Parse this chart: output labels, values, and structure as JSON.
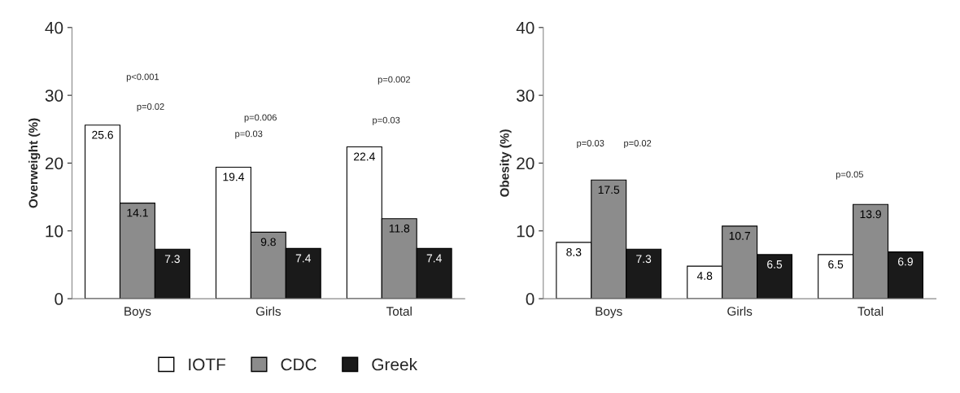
{
  "chart_data": [
    {
      "type": "bar",
      "ylabel": "Overweight (%)",
      "categories": [
        "Boys",
        "Girls",
        "Total"
      ],
      "ylim": [
        0,
        40
      ],
      "yticks": [
        0,
        10,
        20,
        30,
        40
      ],
      "data_labels": true,
      "legend": "bottom",
      "grid": false,
      "series": [
        {
          "name": "IOTF",
          "color": "#ffffff",
          "values": [
            25.6,
            19.4,
            22.4
          ]
        },
        {
          "name": "CDC",
          "color": "#8c8c8c",
          "values": [
            14.1,
            9.8,
            11.8
          ]
        },
        {
          "name": "Greek",
          "color": "#1a1a1a",
          "values": [
            7.3,
            7.4,
            7.4
          ]
        }
      ],
      "annotations": [
        "p<0.001",
        "p=0.02",
        "p=0.006",
        "p=0.03",
        "p=0.002",
        "p=0.03"
      ]
    },
    {
      "type": "bar",
      "ylabel": "Obesity (%)",
      "categories": [
        "Boys",
        "Girls",
        "Total"
      ],
      "ylim": [
        0,
        40
      ],
      "yticks": [
        0,
        10,
        20,
        30,
        40
      ],
      "data_labels": true,
      "grid": false,
      "series": [
        {
          "color": "#ffffff",
          "values": [
            8.3,
            4.8,
            6.5
          ]
        },
        {
          "color": "#8c8c8c",
          "values": [
            17.5,
            10.7,
            13.9
          ]
        },
        {
          "color": "#1a1a1a",
          "values": [
            7.3,
            6.5,
            6.9
          ]
        }
      ],
      "annotations": [
        "p=0.03",
        "p=0.02",
        "p=0.05"
      ]
    }
  ]
}
